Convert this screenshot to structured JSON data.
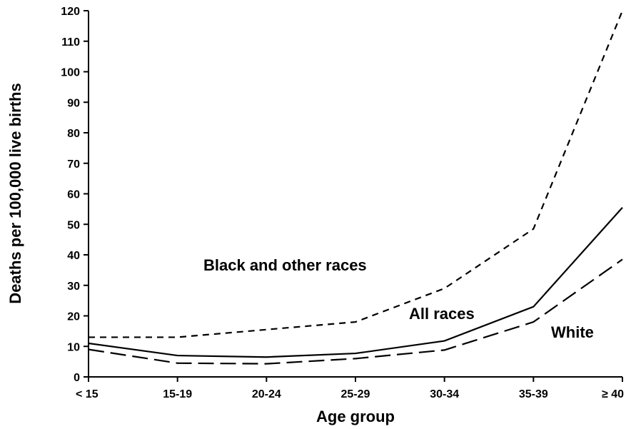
{
  "chart_data": {
    "type": "line",
    "title": "",
    "xlabel": "Age group",
    "ylabel": "Deaths per 100,000 live births",
    "categories": [
      "< 15",
      "15-19",
      "20-24",
      "25-29",
      "30-34",
      "35-39",
      "≥ 40"
    ],
    "ylim": [
      0,
      120
    ],
    "yticks": [
      0,
      10,
      20,
      30,
      40,
      50,
      60,
      70,
      80,
      90,
      100,
      110,
      120
    ],
    "grid": false,
    "legend": "none",
    "series": [
      {
        "name": "Black and other races",
        "values": [
          13,
          13,
          15.5,
          18,
          29,
          48.5,
          120
        ],
        "line_style": "dashed-short"
      },
      {
        "name": "All races",
        "values": [
          11,
          7,
          6.5,
          7.7,
          11.8,
          23,
          55.5
        ],
        "line_style": "solid"
      },
      {
        "name": "White",
        "values": [
          9,
          4.5,
          4.3,
          6,
          8.8,
          18,
          38.5
        ],
        "line_style": "dashed-long"
      }
    ]
  }
}
